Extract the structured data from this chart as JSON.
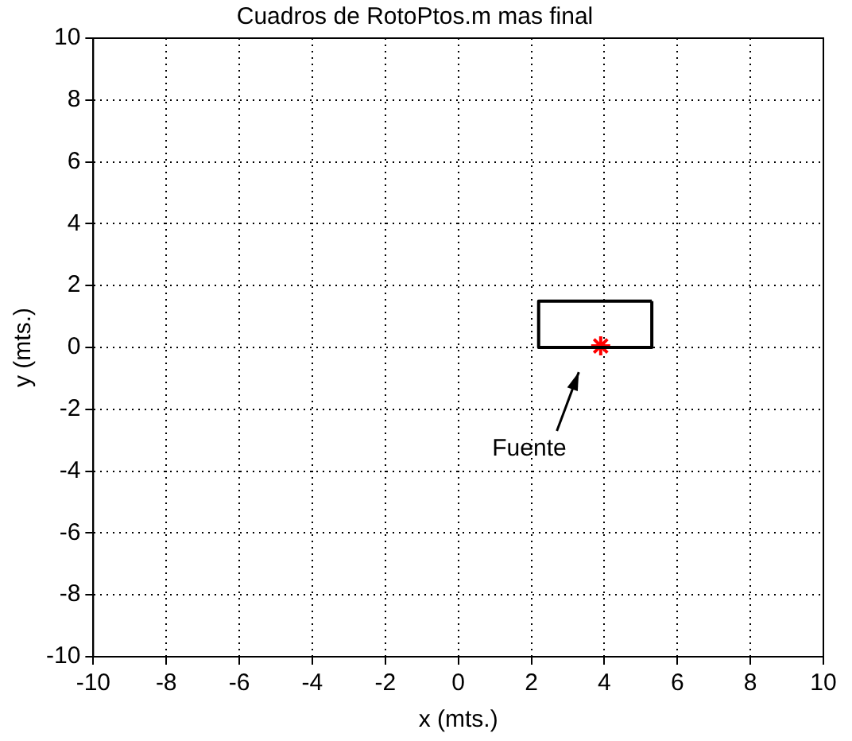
{
  "chart_data": {
    "type": "line",
    "title": "Cuadros de RotoPtos.m mas final",
    "xlabel": "x (mts.)",
    "ylabel": "y (mts.)",
    "xlim": [
      -10,
      10
    ],
    "ylim": [
      -10,
      10
    ],
    "xticks": [
      -10,
      -8,
      -6,
      -4,
      -2,
      0,
      2,
      4,
      6,
      8,
      10
    ],
    "yticks": [
      -10,
      -8,
      -6,
      -4,
      -2,
      0,
      2,
      4,
      6,
      8,
      10
    ],
    "grid": true,
    "series": [
      {
        "color": "#000000",
        "x": [
          2.2,
          5.3,
          5.3
        ],
        "values": [
          0,
          0,
          1.5
        ],
        "marker": "none"
      },
      {
        "color": "#000000",
        "x": [
          5.3,
          2.2,
          2.2
        ],
        "values": [
          1.5,
          1.5,
          0
        ],
        "marker": "none"
      },
      {
        "type": "scatter",
        "color": "#ff0000",
        "x": [
          3.9
        ],
        "values": [
          0.05
        ],
        "marker": "cross"
      }
    ],
    "annotations": [
      "Fuente"
    ]
  }
}
